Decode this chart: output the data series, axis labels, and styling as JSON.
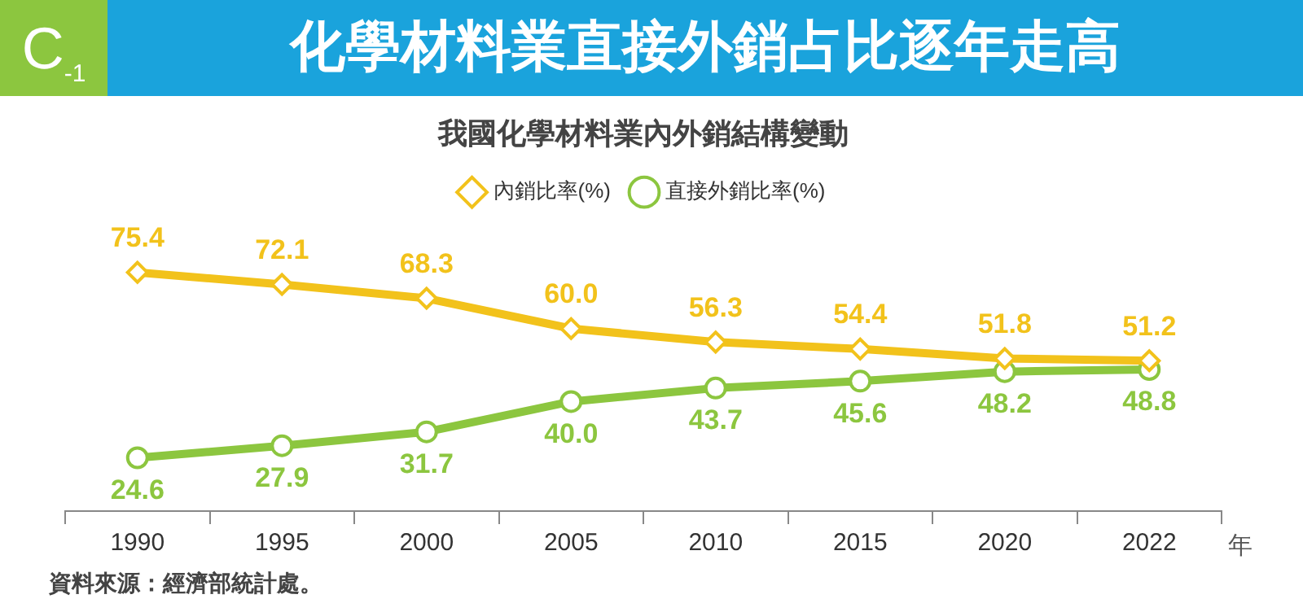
{
  "chart_data": {
    "type": "line",
    "title": "化學材料業直接外銷占比逐年走高",
    "subtitle": "我國化學材料業內外銷結構變動",
    "xlabel": "年",
    "categories": [
      "1990",
      "1995",
      "2000",
      "2005",
      "2010",
      "2015",
      "2020",
      "2022"
    ],
    "series": [
      {
        "name": "內銷比率(%)",
        "color": "#f2c21b",
        "marker": "diamond",
        "values": [
          75.4,
          72.1,
          68.3,
          60.0,
          56.3,
          54.4,
          51.8,
          51.2
        ],
        "value_labels": [
          "75.4",
          "72.1",
          "68.3",
          "60.0",
          "56.3",
          "54.4",
          "51.8",
          "51.2"
        ]
      },
      {
        "name": "直接外銷比率(%)",
        "color": "#8cc63f",
        "marker": "circle",
        "values": [
          24.6,
          27.9,
          31.7,
          40.0,
          43.7,
          45.6,
          48.2,
          48.8
        ],
        "value_labels": [
          "24.6",
          "27.9",
          "31.7",
          "40.0",
          "43.7",
          "45.6",
          "48.2",
          "48.8"
        ]
      }
    ],
    "legend": "top",
    "grid": false,
    "annotations": [
      "C$_{-1}$",
      "資料來源：經濟部統計處。"
    ]
  }
}
